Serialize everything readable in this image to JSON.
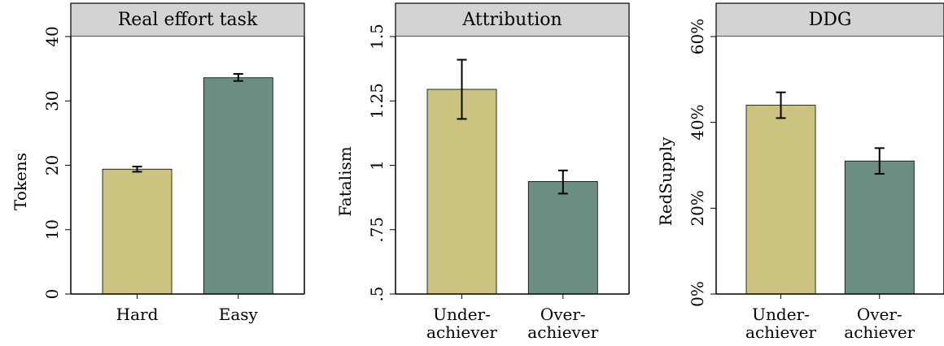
{
  "colors": {
    "bar_a": "#cbc37f",
    "bar_b": "#6d8e82",
    "strip": "#d3d3d3"
  },
  "chart_data": [
    {
      "type": "bar",
      "title": "Real effort task",
      "ylabel": "Tokens",
      "ylim": [
        0,
        40
      ],
      "yticks": [
        0,
        10,
        20,
        30,
        40
      ],
      "ytick_labels": [
        "0",
        "10",
        "20",
        "30",
        "40"
      ],
      "categories": [
        [
          "Hard"
        ],
        [
          "Easy"
        ]
      ],
      "values": [
        19.4,
        33.6
      ],
      "err_low": [
        19.0,
        33.1
      ],
      "err_high": [
        19.8,
        34.2
      ],
      "grid": false,
      "legend": "none"
    },
    {
      "type": "bar",
      "title": "Attribution",
      "ylabel": "Fatalism",
      "ylim": [
        0.5,
        1.5
      ],
      "yticks": [
        0.5,
        0.75,
        1,
        1.25,
        1.5
      ],
      "ytick_labels": [
        ".5",
        ".75",
        "1",
        "1.25",
        "1.5"
      ],
      "categories": [
        [
          "Under-",
          "achiever"
        ],
        [
          "Over-",
          "achiever"
        ]
      ],
      "values": [
        1.295,
        0.937
      ],
      "err_low": [
        1.18,
        0.89
      ],
      "err_high": [
        1.41,
        0.98
      ],
      "grid": false,
      "legend": "none"
    },
    {
      "type": "bar",
      "title": "DDG",
      "ylabel": "RedSupply",
      "ylim": [
        0,
        0.6
      ],
      "yticks": [
        0,
        0.2,
        0.4,
        0.6
      ],
      "ytick_labels": [
        "0%",
        "20%",
        "40%",
        "60%"
      ],
      "categories": [
        [
          "Under-",
          "achiever"
        ],
        [
          "Over-",
          "achiever"
        ]
      ],
      "values": [
        0.44,
        0.31
      ],
      "err_low": [
        0.41,
        0.28
      ],
      "err_high": [
        0.47,
        0.34
      ],
      "grid": false,
      "legend": "none"
    }
  ]
}
